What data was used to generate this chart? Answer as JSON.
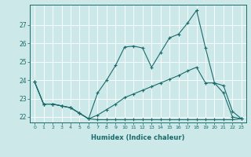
{
  "xlabel": "Humidex (Indice chaleur)",
  "bg_color": "#cce8e8",
  "line_color": "#1a6b6b",
  "grid_color": "#ffffff",
  "xlim": [
    -0.5,
    23.5
  ],
  "ylim": [
    21.7,
    28.1
  ],
  "yticks": [
    22,
    23,
    24,
    25,
    26,
    27
  ],
  "xticks": [
    0,
    1,
    2,
    3,
    4,
    5,
    6,
    7,
    8,
    9,
    10,
    11,
    12,
    13,
    14,
    15,
    16,
    17,
    18,
    19,
    20,
    21,
    22,
    23
  ],
  "line1_y": [
    23.9,
    22.7,
    22.7,
    22.6,
    22.5,
    22.2,
    21.9,
    21.85,
    21.85,
    21.85,
    21.85,
    21.85,
    21.85,
    21.85,
    21.85,
    21.85,
    21.85,
    21.85,
    21.85,
    21.85,
    21.85,
    21.85,
    21.85,
    21.9
  ],
  "line2_y": [
    23.9,
    22.7,
    22.7,
    22.6,
    22.5,
    22.2,
    21.9,
    23.3,
    24.0,
    24.8,
    25.8,
    25.85,
    25.75,
    24.7,
    25.5,
    26.3,
    26.5,
    27.1,
    27.8,
    25.75,
    23.85,
    23.7,
    22.3,
    21.9
  ],
  "line3_y": [
    23.9,
    22.7,
    22.7,
    22.6,
    22.5,
    22.2,
    21.9,
    22.1,
    22.4,
    22.7,
    23.05,
    23.25,
    23.45,
    23.65,
    23.85,
    24.05,
    24.25,
    24.5,
    24.7,
    23.85,
    23.85,
    23.3,
    22.0,
    21.9
  ]
}
